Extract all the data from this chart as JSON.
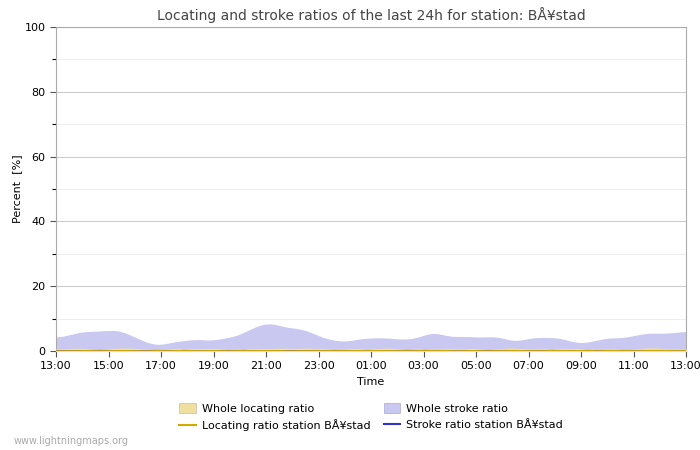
{
  "title": "Locating and stroke ratios of the last 24h for station: BÅ¥stad",
  "xlabel": "Time",
  "ylabel": "Percent  [%]",
  "xlim": [
    0,
    288
  ],
  "ylim": [
    0,
    100
  ],
  "yticks_major": [
    0,
    20,
    40,
    60,
    80,
    100
  ],
  "yticks_minor": [
    10,
    30,
    50,
    70,
    90
  ],
  "xtick_labels": [
    "13:00",
    "15:00",
    "17:00",
    "19:00",
    "21:00",
    "23:00",
    "01:00",
    "03:00",
    "05:00",
    "07:00",
    "09:00",
    "11:00",
    "13:00"
  ],
  "xtick_positions": [
    0,
    24,
    48,
    72,
    96,
    120,
    144,
    168,
    192,
    216,
    240,
    264,
    288
  ],
  "background_color": "#ffffff",
  "plot_background": "#ffffff",
  "grid_color_major": "#cccccc",
  "grid_color_minor": "#e8e8e8",
  "fill_locating_color": "#f0e0a0",
  "fill_stroke_color": "#c8c8f0",
  "line_locating_color": "#d4aa00",
  "line_stroke_color": "#3333cc",
  "watermark": "www.lightningmaps.org",
  "title_fontsize": 10,
  "axis_fontsize": 8,
  "tick_fontsize": 8,
  "legend_fontsize": 8
}
